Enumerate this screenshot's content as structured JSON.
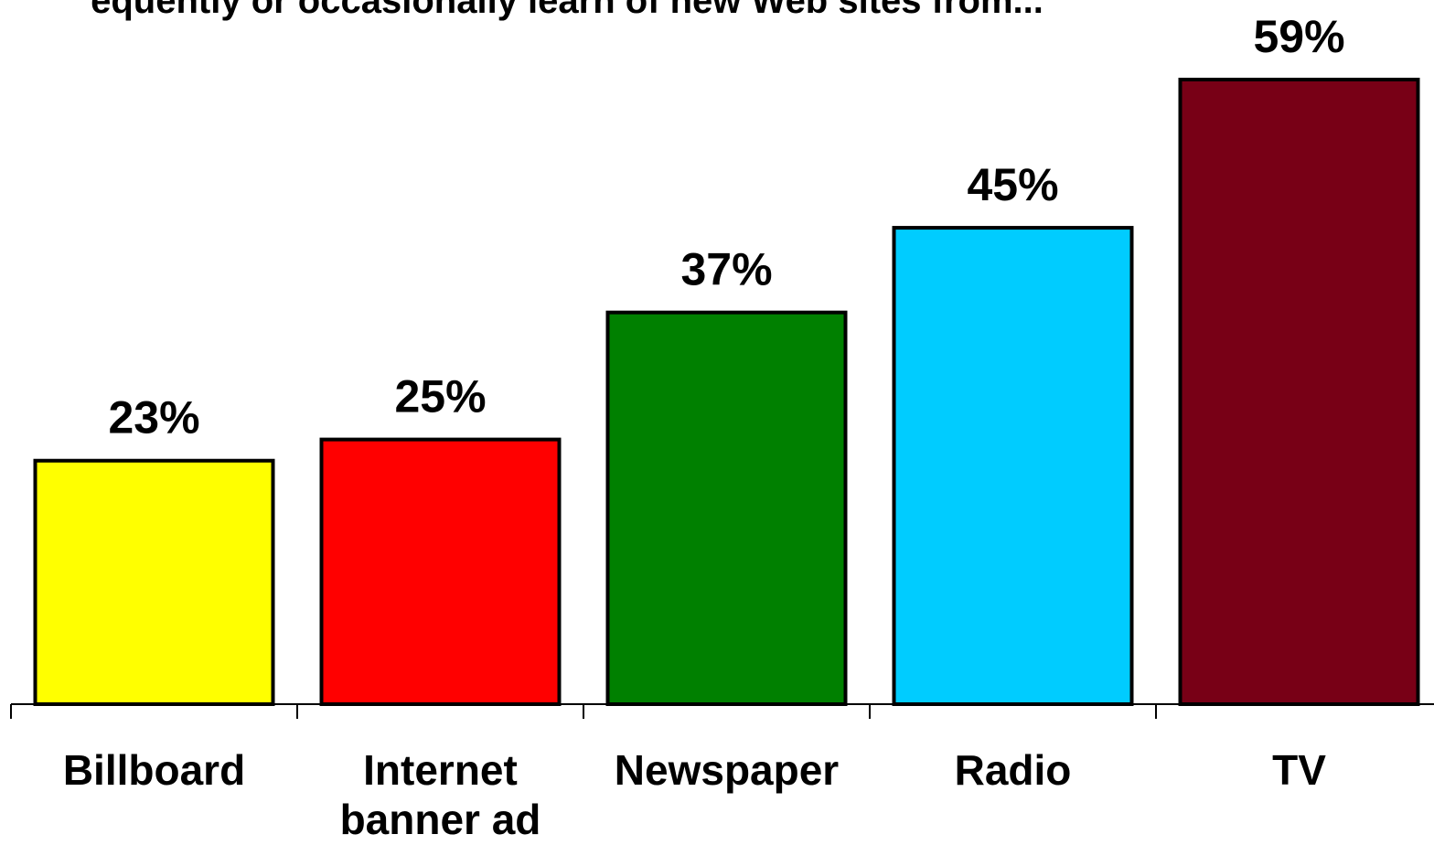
{
  "chart_data": {
    "type": "bar",
    "title": "equently or occasionally learn of new Web sites from...",
    "xlabel": "",
    "ylabel": "",
    "ylim": [
      0,
      59
    ],
    "grid": false,
    "categories": [
      [
        "Billboard"
      ],
      [
        "Internet",
        "banner ad"
      ],
      [
        "Newspaper"
      ],
      [
        "Radio"
      ],
      [
        "TV"
      ]
    ],
    "values": [
      23,
      25,
      37,
      45,
      59
    ],
    "data_labels": [
      "23%",
      "25%",
      "37%",
      "45%",
      "59%"
    ],
    "colors": [
      "#ffff00",
      "#ff0000",
      "#008000",
      "#00ccff",
      "#780016"
    ]
  }
}
